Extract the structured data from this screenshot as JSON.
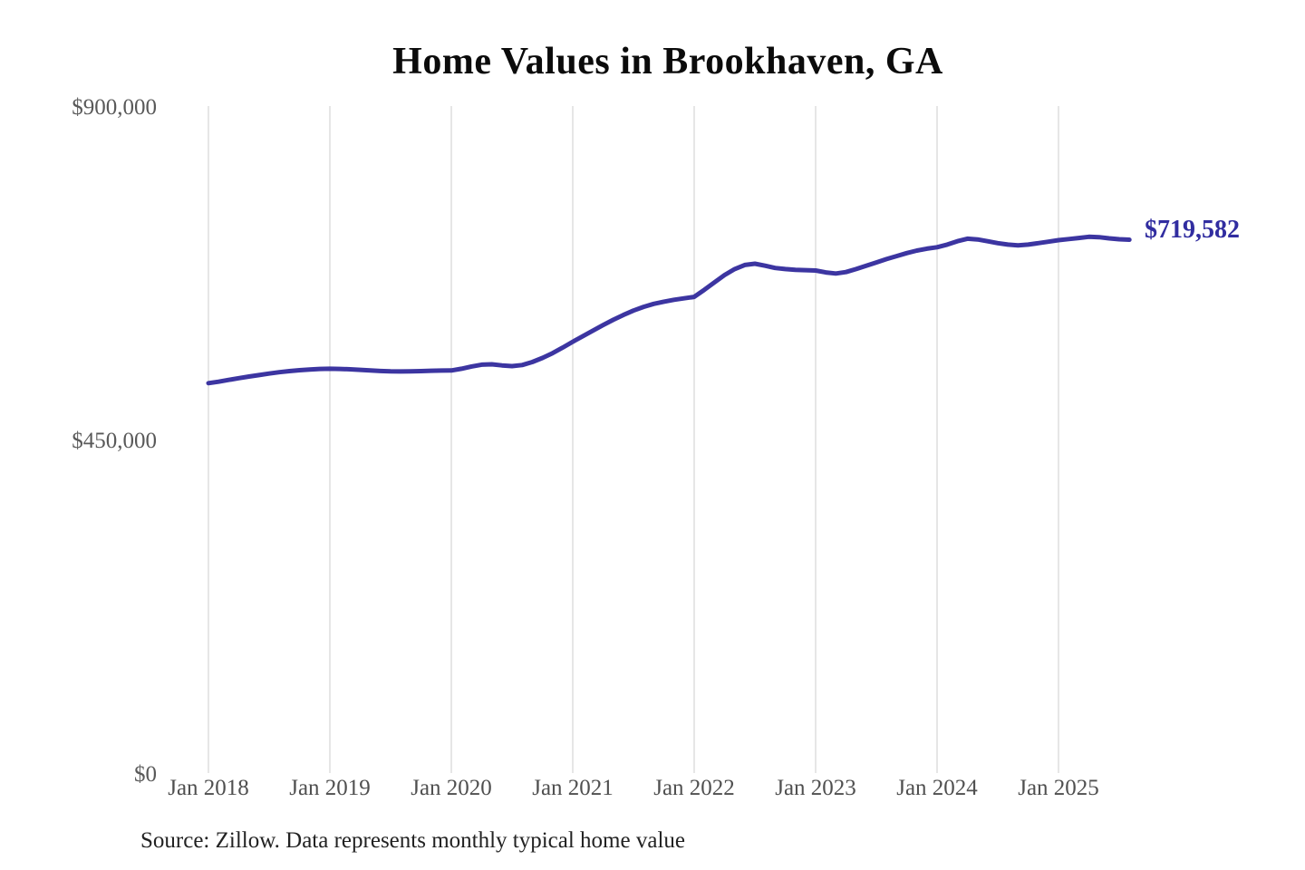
{
  "chart_data": {
    "type": "line",
    "title": "Home Values in Brookhaven, GA",
    "series_name": "Monthly typical home value",
    "end_label": "$719,582",
    "end_value": 719582,
    "source": "Source: Zillow. Data represents monthly typical home value",
    "ylim": [
      0,
      900000
    ],
    "grid": "vertical-only",
    "legend": "none",
    "line_color": "#3c35a1",
    "end_label_color": "#312da0",
    "gridline_color": "#cccccc",
    "tick_color": "#595959",
    "y_ticks": [
      {
        "label": "$900,000",
        "value": 900000
      },
      {
        "label": "$450,000",
        "value": 450000
      },
      {
        "label": "$0",
        "value": 0
      }
    ],
    "x_ticks": [
      "Jan 2018",
      "Jan 2019",
      "Jan 2020",
      "Jan 2021",
      "Jan 2022",
      "Jan 2023",
      "Jan 2024",
      "Jan 2025"
    ],
    "months": [
      "Jan 2018",
      "Feb 2018",
      "Mar 2018",
      "Apr 2018",
      "May 2018",
      "Jun 2018",
      "Jul 2018",
      "Aug 2018",
      "Sep 2018",
      "Oct 2018",
      "Nov 2018",
      "Dec 2018",
      "Jan 2019",
      "Feb 2019",
      "Mar 2019",
      "Apr 2019",
      "May 2019",
      "Jun 2019",
      "Jul 2019",
      "Aug 2019",
      "Sep 2019",
      "Oct 2019",
      "Nov 2019",
      "Dec 2019",
      "Jan 2020",
      "Feb 2020",
      "Mar 2020",
      "Apr 2020",
      "May 2020",
      "Jun 2020",
      "Jul 2020",
      "Aug 2020",
      "Sep 2020",
      "Oct 2020",
      "Nov 2020",
      "Dec 2020",
      "Jan 2021",
      "Feb 2021",
      "Mar 2021",
      "Apr 2021",
      "May 2021",
      "Jun 2021",
      "Jul 2021",
      "Aug 2021",
      "Sep 2021",
      "Oct 2021",
      "Nov 2021",
      "Dec 2021",
      "Jan 2022",
      "Feb 2022",
      "Mar 2022",
      "Apr 2022",
      "May 2022",
      "Jun 2022",
      "Jul 2022",
      "Aug 2022",
      "Sep 2022",
      "Oct 2022",
      "Nov 2022",
      "Dec 2022",
      "Jan 2023",
      "Feb 2023",
      "Mar 2023",
      "Apr 2023",
      "May 2023",
      "Jun 2023",
      "Jul 2023",
      "Aug 2023",
      "Sep 2023",
      "Oct 2023",
      "Nov 2023",
      "Dec 2023",
      "Jan 2024",
      "Feb 2024",
      "Mar 2024",
      "Apr 2024",
      "May 2024",
      "Jun 2024",
      "Jul 2024",
      "Aug 2024",
      "Sep 2024",
      "Oct 2024",
      "Nov 2024",
      "Dec 2024",
      "Jan 2025",
      "Feb 2025",
      "Mar 2025",
      "Apr 2025",
      "May 2025",
      "Jun 2025",
      "Jul 2025",
      "Aug 2025"
    ],
    "values": [
      526000,
      528000,
      530500,
      532800,
      535000,
      537000,
      539000,
      540800,
      542300,
      543500,
      544500,
      545200,
      545500,
      545300,
      544800,
      544000,
      543200,
      542500,
      542000,
      541800,
      541900,
      542300,
      542800,
      543000,
      543200,
      545500,
      548500,
      551000,
      551500,
      550000,
      549000,
      550500,
      554500,
      560000,
      566500,
      574000,
      582000,
      589500,
      597000,
      604500,
      611500,
      618000,
      624000,
      629000,
      633000,
      636000,
      638500,
      640500,
      642500,
      652000,
      662000,
      672000,
      680000,
      685500,
      687200,
      684500,
      681500,
      680000,
      679000,
      678500,
      678000,
      675500,
      674000,
      676000,
      680000,
      684500,
      689000,
      693500,
      697500,
      701500,
      705000,
      707500,
      709500,
      713000,
      717500,
      721000,
      720000,
      717500,
      715000,
      713000,
      712000,
      713000,
      715000,
      717000,
      719000,
      720500,
      722000,
      723500,
      723000,
      721500,
      720300,
      719582
    ]
  }
}
